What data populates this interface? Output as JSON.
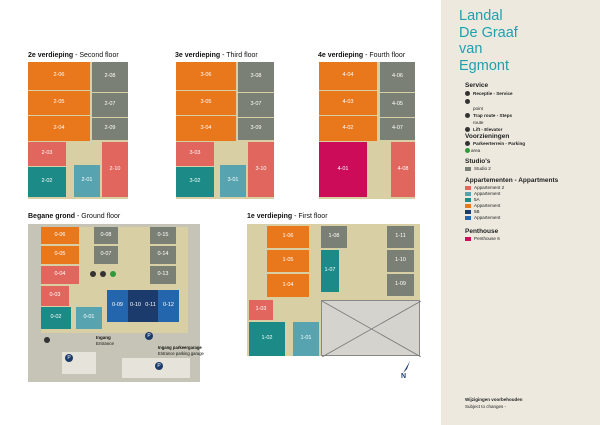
{
  "brand": {
    "title_lines": [
      "Landal",
      "De Graaf",
      "van",
      "Egmont"
    ]
  },
  "colors": {
    "orange": "#e9771c",
    "green_grey": "#7a8075",
    "salmon": "#e0665e",
    "teal": "#1c8a86",
    "light_teal": "#57a4b0",
    "magenta": "#cc0c59",
    "dark_blue": "#1a3b6b",
    "blue": "#2366ae",
    "beige": "#d8cfa5",
    "sidebar": "#ede9df",
    "brand": "#1fa0b0"
  },
  "floors": [
    {
      "key": "second",
      "title_bold": "2e verdieping",
      "title_rest": " - Second floor",
      "rooms": [
        "2-06",
        "2-05",
        "2-04",
        "2-08",
        "2-07",
        "2-09",
        "2-03",
        "2-02",
        "2-01",
        "2-10"
      ]
    },
    {
      "key": "third",
      "title_bold": "3e verdieping",
      "title_rest": " - Third floor",
      "rooms": [
        "3-06",
        "3-05",
        "3-04",
        "3-08",
        "3-07",
        "3-09",
        "3-03",
        "3-02",
        "3-01",
        "3-10"
      ]
    },
    {
      "key": "fourth",
      "title_bold": "4e verdieping",
      "title_rest": " - Fourth floor",
      "rooms": [
        "4-04",
        "4-03",
        "4-02",
        "4-06",
        "4-05",
        "4-07",
        "4-01",
        "4-08"
      ]
    },
    {
      "key": "ground",
      "title_bold": "Begane grond",
      "title_rest": " - Ground floor",
      "rooms": [
        "0-06",
        "0-05",
        "0-04",
        "0-03",
        "0-02",
        "0-01",
        "0-08",
        "0-07",
        "0-09",
        "0-10",
        "0-11",
        "0-12",
        "0-15",
        "0-14",
        "0-13"
      ],
      "labels": {
        "entrance_nl": "Ingang",
        "entrance_en": "Entrance",
        "garage_nl": "Ingang parkeergarage",
        "garage_en": "Entrance parking garage"
      }
    },
    {
      "key": "first",
      "title_bold": "1e verdieping",
      "title_rest": " - First floor",
      "rooms": [
        "1-06",
        "1-05",
        "1-04",
        "1-03",
        "1-02",
        "1-01",
        "1-08",
        "1-07",
        "1-11",
        "1-10",
        "1-09"
      ]
    }
  ],
  "legend": {
    "service_title": "Service",
    "service_items": [
      "Receptie - Service",
      "",
      "point",
      "Trap route - Steps",
      "route",
      "Lift - Elevator"
    ],
    "voorzieningen_title": "Voorzieningen",
    "voorzieningen_items": [
      "Parkeerterrein - Parking",
      "area"
    ],
    "studios_title": "Studio's",
    "studios_items": [
      "Studio 2"
    ],
    "appartementen_title": "Appartementen - Appartments",
    "appartementen_items": [
      "Appartement 2",
      "Appartement",
      "5A",
      "Appartement",
      "5B",
      "Appartement"
    ],
    "penthouse_title": "Penthouse",
    "penthouse_items": [
      "Penthouse 6"
    ]
  },
  "north_label": "N",
  "footer": {
    "line1": "Wijzigingen voorbehouden",
    "line2": "Subject to changes -"
  }
}
